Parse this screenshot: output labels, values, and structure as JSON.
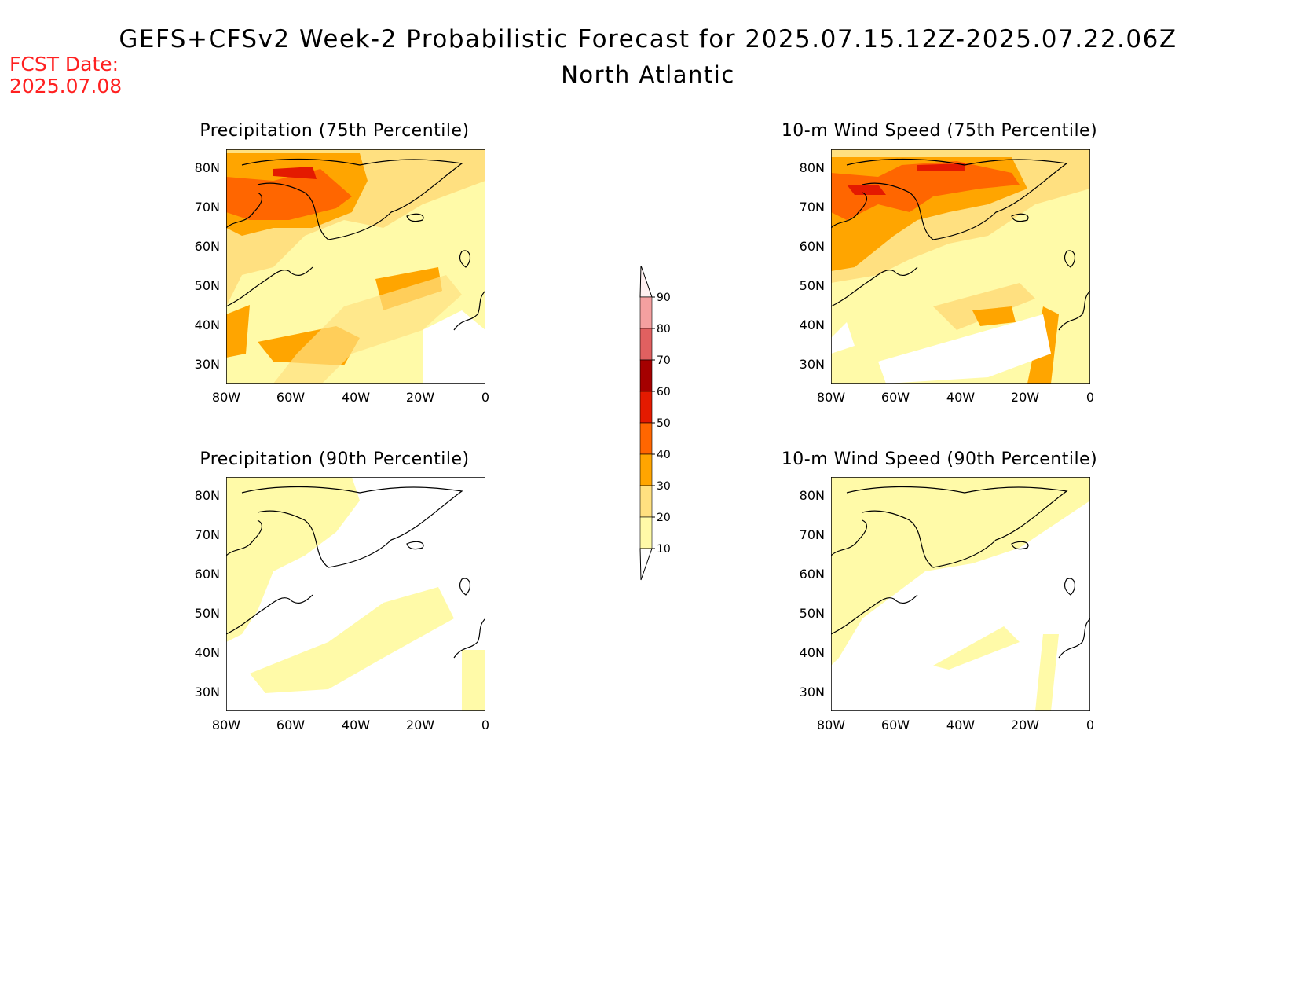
{
  "header": {
    "title": "GEFS+CFSv2 Week-2 Probabilistic Forecast for 2025.07.15.12Z-2025.07.22.06Z",
    "region": "North Atlantic",
    "fcst_date_label": "FCST Date:",
    "fcst_date_value": "2025.07.08"
  },
  "panels": [
    {
      "id": "precip75",
      "title": "Precipitation (75th Percentile)"
    },
    {
      "id": "wind75",
      "title": "10-m Wind Speed (75th Percentile)"
    },
    {
      "id": "precip90",
      "title": "Precipitation (90th Percentile)"
    },
    {
      "id": "wind90",
      "title": "10-m Wind Speed (90th Percentile)"
    }
  ],
  "axes": {
    "lat_labels": [
      "80N",
      "70N",
      "60N",
      "50N",
      "40N",
      "30N"
    ],
    "lon_labels": [
      "80W",
      "60W",
      "40W",
      "20W",
      "0"
    ]
  },
  "colorbar": {
    "levels": [
      "90",
      "80",
      "70",
      "60",
      "50",
      "40",
      "30",
      "20",
      "10"
    ],
    "colors": [
      "#fde3e3",
      "#f4a0a0",
      "#e06060",
      "#a50000",
      "#e41a00",
      "#ff6600",
      "#ffa500",
      "#ffe080",
      "#fffaa8"
    ]
  },
  "colors": {
    "c10": "#fffaa8",
    "c20": "#ffe080",
    "c30": "#ffa500",
    "c40": "#ff6600",
    "c50": "#e41a00",
    "red_text": "#ff2020"
  }
}
